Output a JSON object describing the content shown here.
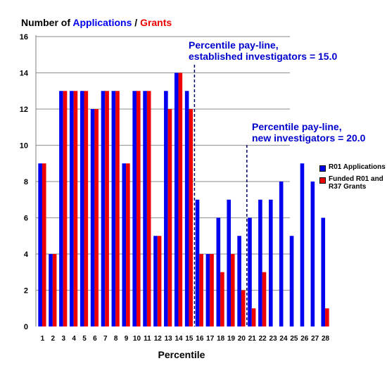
{
  "title": {
    "part1": "Number of ",
    "part2": "Applications",
    "part3": " / ",
    "part4": "Grants"
  },
  "colors": {
    "applications": "#0000ee",
    "grants": "#ee0000",
    "annotation": "#0000cc",
    "grid": "#a0a0a0"
  },
  "legend": {
    "applications": "R01 Applications",
    "grants": "Funded R01 and R37 Grants"
  },
  "annotations": {
    "established": {
      "line1": "Percentile pay-line,",
      "line2": "established investigators = 15.0",
      "at_percentile": 15.0
    },
    "new": {
      "line1": "Percentile pay-line,",
      "line2": "new investigators = 20.0",
      "at_percentile": 20.0
    }
  },
  "chart_data": {
    "type": "bar",
    "xlabel": "Percentile",
    "ylabel": "",
    "ylim": [
      0,
      16
    ],
    "yticks": [
      0,
      2,
      4,
      6,
      8,
      10,
      12,
      14,
      16
    ],
    "grid": true,
    "legend_position": "right",
    "categories": [
      "1",
      "2",
      "3",
      "4",
      "5",
      "6",
      "7",
      "8",
      "9",
      "10",
      "11",
      "12",
      "13",
      "14",
      "15",
      "16",
      "17",
      "18",
      "19",
      "20",
      "21",
      "22",
      "23",
      "24",
      "25",
      "26",
      "27",
      "28"
    ],
    "series": [
      {
        "name": "R01 Applications",
        "values": [
          9,
          4,
          13,
          13,
          13,
          12,
          13,
          13,
          9,
          13,
          13,
          5,
          13,
          14,
          13,
          7,
          4,
          6,
          7,
          5,
          6,
          7,
          7,
          8,
          5,
          9,
          8,
          6
        ]
      },
      {
        "name": "Funded R01 and R37 Grants",
        "values": [
          9,
          4,
          13,
          13,
          13,
          12,
          13,
          13,
          9,
          13,
          13,
          5,
          12,
          14,
          12,
          4,
          4,
          3,
          4,
          2,
          1,
          3,
          0,
          0,
          0,
          0,
          0,
          1
        ]
      }
    ]
  }
}
